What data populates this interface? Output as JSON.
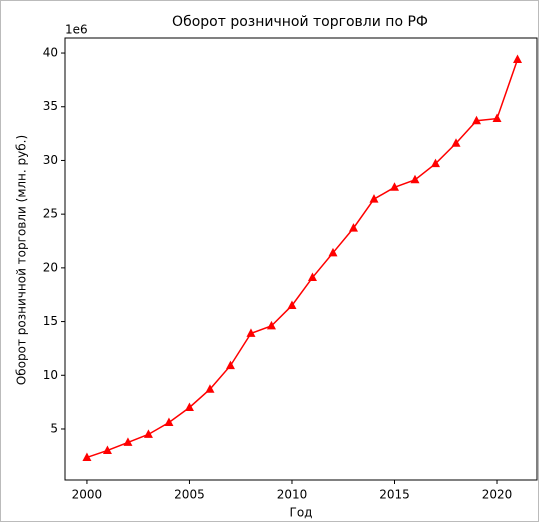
{
  "chart_data": {
    "type": "line",
    "title": "Оборот розничной торговли по РФ",
    "xlabel": "Год",
    "ylabel": "Оборот розничной торговли (млн. руб.)",
    "y_offset_label": "1e6",
    "x": [
      2000,
      2001,
      2002,
      2003,
      2004,
      2005,
      2006,
      2007,
      2008,
      2009,
      2010,
      2011,
      2012,
      2013,
      2014,
      2015,
      2016,
      2017,
      2018,
      2019,
      2020,
      2021
    ],
    "series": [
      {
        "color": "#ff0000",
        "marker": "triangle",
        "values": [
          2.35,
          3.0,
          3.75,
          4.5,
          5.6,
          7.0,
          8.7,
          10.9,
          13.9,
          14.6,
          16.5,
          19.1,
          21.4,
          23.7,
          26.4,
          27.5,
          28.2,
          29.7,
          31.6,
          33.7,
          33.9,
          39.4
        ]
      }
    ],
    "xlim": [
      1998.93,
      2021.95
    ],
    "ylim": [
      0.25,
      41.4
    ],
    "xticks": [
      2000,
      2005,
      2010,
      2015,
      2020
    ],
    "yticks": [
      5,
      10,
      15,
      20,
      25,
      30,
      35,
      40
    ],
    "grid": false
  }
}
